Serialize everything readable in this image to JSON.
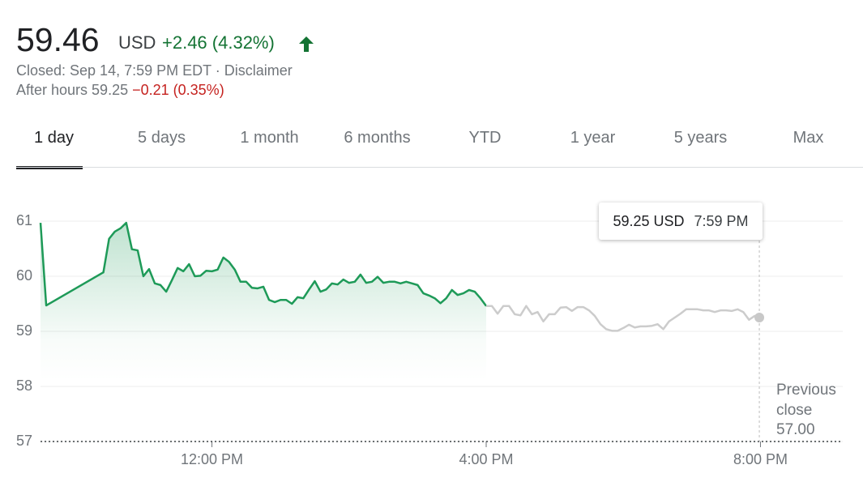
{
  "header": {
    "price": "59.46",
    "currency": "USD",
    "change": "+2.46 (4.32%)",
    "status": "Closed: Sep 14, 7:59 PM EDT · Disclaimer",
    "after_hours_label": "After hours 59.25",
    "after_hours_change": "−0.21 (0.35%)"
  },
  "tabs": [
    "1 day",
    "5 days",
    "1 month",
    "6 months",
    "YTD",
    "1 year",
    "5 years",
    "Max"
  ],
  "active_tab": 0,
  "chart_data": {
    "type": "line",
    "xlim": [
      570,
      1272
    ],
    "xticks": [
      {
        "value": 720,
        "label": "12:00 PM"
      },
      {
        "value": 960,
        "label": "4:00 PM"
      },
      {
        "value": 1200,
        "label": "8:00 PM"
      }
    ],
    "ylim": [
      57,
      61
    ],
    "yticks": [
      57,
      58,
      59,
      60,
      61
    ],
    "grid": true,
    "series": [
      {
        "color": "#1e9a58",
        "x": [
          570,
          575,
          625,
          630,
          635,
          640,
          645,
          650,
          655,
          660,
          665,
          670,
          675,
          680,
          685,
          690,
          695,
          700,
          705,
          710,
          715,
          720,
          725,
          730,
          735,
          740,
          745,
          750,
          755,
          760,
          765,
          770,
          775,
          780,
          785,
          790,
          795,
          800,
          805,
          810,
          815,
          820,
          825,
          830,
          835,
          840,
          845,
          850,
          855,
          860,
          865,
          870,
          875,
          880,
          885,
          890,
          895,
          900,
          905,
          910,
          915,
          920,
          925,
          930,
          935,
          940,
          945,
          950,
          955,
          960
        ],
        "values": [
          60.97,
          59.47,
          60.07,
          60.68,
          60.81,
          60.87,
          60.97,
          60.49,
          60.47,
          60.0,
          60.13,
          59.87,
          59.84,
          59.72,
          59.93,
          60.15,
          60.09,
          60.22,
          60.0,
          60.01,
          60.1,
          60.09,
          60.12,
          60.34,
          60.26,
          60.12,
          59.9,
          59.9,
          59.79,
          59.78,
          59.81,
          59.57,
          59.53,
          59.57,
          59.57,
          59.5,
          59.62,
          59.6,
          59.76,
          59.91,
          59.72,
          59.76,
          59.87,
          59.85,
          59.94,
          59.88,
          59.9,
          60.03,
          59.88,
          59.9,
          59.99,
          59.88,
          59.9,
          59.9,
          59.87,
          59.9,
          59.87,
          59.84,
          59.69,
          59.65,
          59.6,
          59.51,
          59.6,
          59.75,
          59.66,
          59.69,
          59.75,
          59.72,
          59.6,
          59.46
        ]
      },
      {
        "color": "#cccccc",
        "x": [
          960,
          965,
          970,
          975,
          980,
          985,
          990,
          995,
          1000,
          1005,
          1010,
          1015,
          1020,
          1025,
          1030,
          1035,
          1040,
          1045,
          1050,
          1055,
          1060,
          1065,
          1070,
          1075,
          1080,
          1085,
          1090,
          1095,
          1100,
          1105,
          1110,
          1115,
          1120,
          1125,
          1130,
          1135,
          1140,
          1145,
          1150,
          1155,
          1160,
          1165,
          1170,
          1175,
          1180,
          1185,
          1190,
          1195,
          1199
        ],
        "values": [
          59.46,
          59.46,
          59.32,
          59.46,
          59.46,
          59.31,
          59.29,
          59.46,
          59.31,
          59.35,
          59.18,
          59.31,
          59.31,
          59.43,
          59.44,
          59.37,
          59.44,
          59.44,
          59.38,
          59.28,
          59.13,
          59.04,
          59.01,
          59.01,
          59.06,
          59.12,
          59.07,
          59.09,
          59.09,
          59.1,
          59.13,
          59.04,
          59.18,
          59.25,
          59.32,
          59.4,
          59.4,
          59.4,
          59.38,
          59.38,
          59.35,
          59.38,
          59.38,
          59.37,
          59.4,
          59.35,
          59.21,
          59.28,
          59.25
        ]
      }
    ],
    "previous_close": {
      "label": "Previous close",
      "value": 57,
      "value_label": "57.00"
    },
    "tooltip": {
      "x": 1199,
      "value": 59.25,
      "label": "59.25 USD",
      "time_label": "7:59 PM"
    }
  }
}
